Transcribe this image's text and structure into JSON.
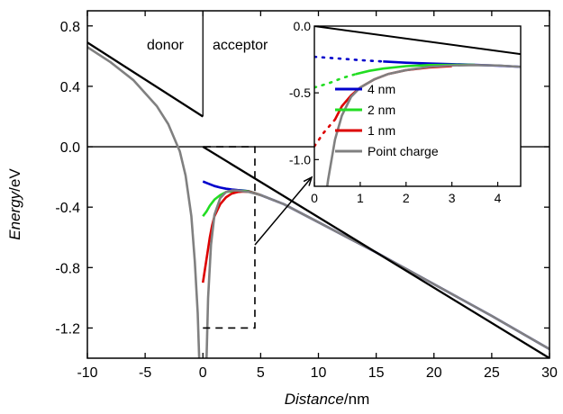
{
  "chart_data": [
    {
      "id": "main",
      "type": "line",
      "xlabel": {
        "italic": "Distance",
        "unit": "/nm"
      },
      "ylabel": {
        "italic": "Energy",
        "unit": "/eV"
      },
      "xlim": [
        -10,
        30
      ],
      "ylim": [
        -1.4,
        0.9
      ],
      "xticks": [
        "-10",
        "-5",
        "0",
        "5",
        "10",
        "15",
        "20",
        "25",
        "30"
      ],
      "yticks": [
        "0.8",
        "0.4",
        "0.0",
        "-0.4",
        "-0.8",
        "-1.2"
      ],
      "xtick_values": [
        -10,
        -5,
        0,
        5,
        10,
        15,
        20,
        25,
        30
      ],
      "ytick_values": [
        0.8,
        0.4,
        0.0,
        -0.4,
        -0.8,
        -1.2
      ],
      "regions": [
        "donor",
        "acceptor"
      ],
      "grid": false,
      "series": [
        {
          "name": "4 nm",
          "color": "#0000cc",
          "x": [
            0,
            0.5,
            1,
            1.5,
            2,
            2.5,
            3,
            3.5,
            4,
            5,
            7,
            10,
            15,
            20,
            25,
            30
          ],
          "y": [
            -0.23,
            -0.245,
            -0.26,
            -0.27,
            -0.278,
            -0.283,
            -0.287,
            -0.29,
            -0.295,
            -0.32,
            -0.38,
            -0.5,
            -0.7,
            -0.91,
            -1.12,
            -1.34
          ]
        },
        {
          "name": "2 nm",
          "color": "#22dd22",
          "x": [
            0,
            0.3,
            0.6,
            1,
            1.5,
            2,
            2.5,
            3,
            3.5,
            4,
            5
          ],
          "y": [
            -0.46,
            -0.43,
            -0.39,
            -0.35,
            -0.32,
            -0.3,
            -0.295,
            -0.292,
            -0.292,
            -0.296,
            -0.32
          ]
        },
        {
          "name": "1 nm",
          "color": "#dd0000",
          "x": [
            0,
            0.2,
            0.4,
            0.6,
            0.8,
            1,
            1.5,
            2,
            2.5,
            3,
            3.5,
            4,
            5
          ],
          "y": [
            -0.9,
            -0.8,
            -0.7,
            -0.6,
            -0.52,
            -0.46,
            -0.38,
            -0.335,
            -0.31,
            -0.3,
            -0.297,
            -0.298,
            -0.32
          ]
        },
        {
          "name": "Point charge",
          "color": "#808080",
          "x": [
            -10,
            -8,
            -6,
            -4,
            -3,
            -2,
            -1.5,
            -1,
            -0.7,
            -0.45,
            -0.3,
            -0.2,
            0.2,
            0.3,
            0.45,
            0.7,
            1,
            1.5,
            2,
            2.5,
            3,
            3.5,
            4,
            5,
            7,
            10,
            15,
            20,
            25,
            30
          ],
          "y": [
            0.66,
            0.56,
            0.44,
            0.27,
            0.15,
            -0.03,
            -0.19,
            -0.46,
            -0.76,
            -1.1,
            -1.45,
            -1.5,
            -1.5,
            -1.45,
            -1.0,
            -0.65,
            -0.45,
            -0.34,
            -0.3,
            -0.29,
            -0.29,
            -0.295,
            -0.3,
            -0.32,
            -0.38,
            -0.5,
            -0.7,
            -0.91,
            -1.12,
            -1.34
          ]
        },
        {
          "name": "",
          "color": "#000000",
          "x": [
            -10,
            0
          ],
          "y": [
            0.69,
            0.2
          ]
        },
        {
          "name": "",
          "color": "#000000",
          "x": [
            0,
            30
          ],
          "y": [
            0.0,
            -1.4
          ]
        }
      ],
      "annotations": {
        "zoom_box": {
          "x": [
            0,
            4.5
          ],
          "y": [
            -1.2,
            0.0
          ]
        }
      }
    },
    {
      "id": "inset",
      "type": "line",
      "xlim": [
        0,
        4.5
      ],
      "ylim": [
        -1.2,
        0.0
      ],
      "xticks": [
        "0",
        "1",
        "2",
        "3",
        "4"
      ],
      "yticks": [
        "0.0",
        "-0.5",
        "-1.0"
      ],
      "xtick_values": [
        0,
        1,
        2,
        3,
        4
      ],
      "ytick_values": [
        0.0,
        -0.5,
        -1.0
      ],
      "legend": {
        "position": "bottom-right",
        "entries": [
          "4 nm",
          "2 nm",
          "1 nm",
          "Point charge"
        ]
      },
      "series": [
        {
          "name": "",
          "color": "#000000",
          "x": [
            0,
            4.5
          ],
          "y": [
            0.0,
            -0.21
          ]
        },
        {
          "name": "4 nm",
          "color": "#0000cc",
          "dotted_until": 1.5,
          "x": [
            0,
            0.5,
            1,
            1.5,
            2,
            2.5,
            3,
            3.5,
            4,
            4.5
          ],
          "y": [
            -0.23,
            -0.242,
            -0.255,
            -0.265,
            -0.274,
            -0.28,
            -0.285,
            -0.29,
            -0.296,
            -0.305
          ]
        },
        {
          "name": "2 nm",
          "color": "#22dd22",
          "dotted_until": 0.9,
          "x": [
            0,
            0.3,
            0.6,
            0.9,
            1.2,
            1.5,
            2,
            2.5,
            3,
            3.5
          ],
          "y": [
            -0.46,
            -0.43,
            -0.39,
            -0.36,
            -0.335,
            -0.318,
            -0.3,
            -0.292,
            -0.29,
            -0.29
          ]
        },
        {
          "name": "1 nm",
          "color": "#dd0000",
          "dotted_until": 0.45,
          "x": [
            0,
            0.2,
            0.45,
            0.6,
            0.8,
            1,
            1.3,
            1.6,
            2,
            2.5,
            3
          ],
          "y": [
            -0.9,
            -0.8,
            -0.7,
            -0.6,
            -0.52,
            -0.46,
            -0.4,
            -0.36,
            -0.33,
            -0.31,
            -0.3
          ]
        },
        {
          "name": "Point charge",
          "color": "#808080",
          "x": [
            0.2,
            0.3,
            0.45,
            0.6,
            0.8,
            1,
            1.3,
            1.6,
            2,
            2.5,
            3,
            3.5,
            4,
            4.5
          ],
          "y": [
            -1.4,
            -1.15,
            -0.85,
            -0.67,
            -0.53,
            -0.46,
            -0.4,
            -0.36,
            -0.33,
            -0.305,
            -0.295,
            -0.292,
            -0.295,
            -0.305
          ]
        }
      ]
    }
  ]
}
